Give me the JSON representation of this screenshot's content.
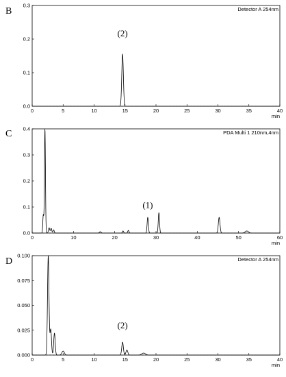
{
  "chart_data": [
    {
      "type": "line",
      "panel_label": "B",
      "detector_label": "Detector A 254nm",
      "x_unit": "min",
      "xlim": [
        0,
        40
      ],
      "ylim": [
        0,
        0.3
      ],
      "x_ticks": [
        0,
        5,
        10,
        15,
        20,
        25,
        30,
        35,
        40
      ],
      "y_ticks": [
        0.0,
        0.1,
        0.2,
        0.3
      ],
      "x_tick_labels": [
        "0",
        "5",
        "10",
        "15",
        "20",
        "25",
        "30",
        "35",
        "40"
      ],
      "y_tick_labels": [
        "0.0",
        "0.1",
        "0.2",
        "0.3"
      ],
      "baseline": 0.0,
      "peaks": [
        {
          "x": 14.6,
          "height": 0.155,
          "width": 0.13
        }
      ],
      "annotations": [
        {
          "text": "(2)",
          "x": 14.6,
          "y": 0.2
        }
      ]
    },
    {
      "type": "line",
      "panel_label": "C",
      "detector_label": "PDA Multi 1 210nm,4nm",
      "x_unit": "min",
      "xlim": [
        0,
        60
      ],
      "ylim": [
        0,
        0.4
      ],
      "x_ticks": [
        0,
        10,
        20,
        30,
        40,
        50,
        60
      ],
      "y_ticks": [
        0.0,
        0.1,
        0.2,
        0.3,
        0.4
      ],
      "x_tick_labels": [
        "0",
        "10",
        "20",
        "30",
        "40",
        "50",
        "60"
      ],
      "y_tick_labels": [
        "0.0",
        "0.1",
        "0.2",
        "0.3",
        "0.4"
      ],
      "baseline": 0.0,
      "peaks": [
        {
          "x": 2.7,
          "height": 0.07,
          "width": 0.12
        },
        {
          "x": 3.1,
          "height": 0.4,
          "width": 0.12
        },
        {
          "x": 4.1,
          "height": 0.02,
          "width": 0.15
        },
        {
          "x": 4.6,
          "height": 0.018,
          "width": 0.15
        },
        {
          "x": 5.2,
          "height": 0.012,
          "width": 0.15
        },
        {
          "x": 16.5,
          "height": 0.005,
          "width": 0.2
        },
        {
          "x": 22.0,
          "height": 0.008,
          "width": 0.15
        },
        {
          "x": 23.3,
          "height": 0.01,
          "width": 0.15
        },
        {
          "x": 28.0,
          "height": 0.06,
          "width": 0.15
        },
        {
          "x": 30.7,
          "height": 0.078,
          "width": 0.15
        },
        {
          "x": 45.3,
          "height": 0.06,
          "width": 0.2
        },
        {
          "x": 52.0,
          "height": 0.008,
          "width": 0.4
        }
      ],
      "annotations": [
        {
          "text": "(1)",
          "x": 28.0,
          "y": 0.085
        }
      ]
    },
    {
      "type": "line",
      "panel_label": "D",
      "detector_label": "Detector A 254nm",
      "x_unit": "min",
      "xlim": [
        0,
        40
      ],
      "ylim": [
        0,
        0.1
      ],
      "x_ticks": [
        0,
        5,
        10,
        15,
        20,
        25,
        30,
        35,
        40
      ],
      "y_ticks": [
        0.0,
        0.025,
        0.05,
        0.075,
        0.1
      ],
      "x_tick_labels": [
        "0",
        "5",
        "10",
        "15",
        "20",
        "25",
        "30",
        "35",
        "40"
      ],
      "y_tick_labels": [
        "0.000",
        "0.025",
        "0.050",
        "0.075",
        "0.100"
      ],
      "baseline": 0.0,
      "peaks": [
        {
          "x": 2.6,
          "height": 0.1,
          "width": 0.12
        },
        {
          "x": 3.0,
          "height": 0.026,
          "width": 0.12
        },
        {
          "x": 3.6,
          "height": 0.022,
          "width": 0.12
        },
        {
          "x": 5.0,
          "height": 0.004,
          "width": 0.2
        },
        {
          "x": 14.6,
          "height": 0.013,
          "width": 0.13
        },
        {
          "x": 15.3,
          "height": 0.005,
          "width": 0.15
        },
        {
          "x": 18.0,
          "height": 0.002,
          "width": 0.3
        }
      ],
      "annotations": [
        {
          "text": "(2)",
          "x": 14.6,
          "y": 0.024
        }
      ]
    }
  ]
}
